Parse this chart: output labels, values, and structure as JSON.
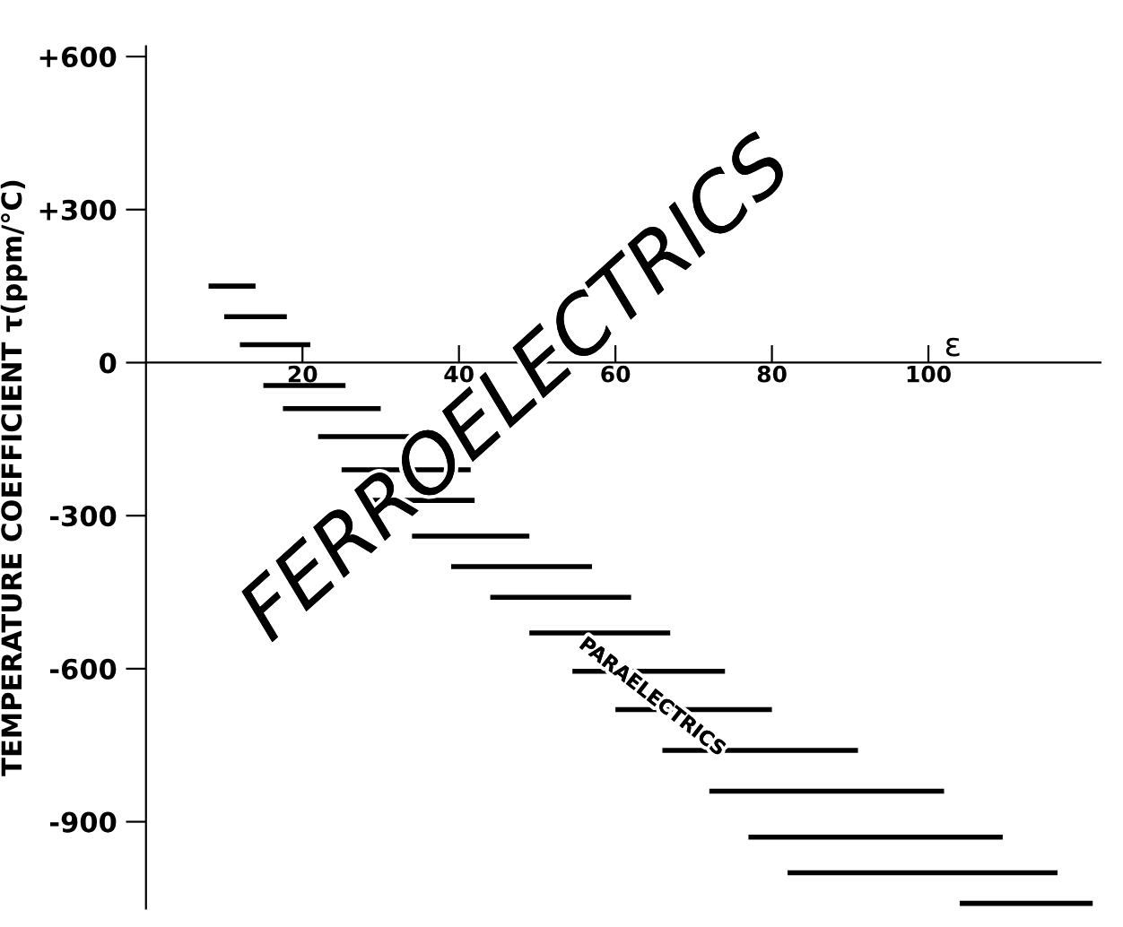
{
  "chart_data": {
    "type": "line",
    "ylabel": "TEMPERATURE COEFFICIENT τ(ppm/°C)",
    "xlabel": "ε",
    "xlim": [
      0,
      122
    ],
    "xticks": [
      20,
      40,
      60,
      80,
      100
    ],
    "ylim": [
      -1070,
      620
    ],
    "yticks": [
      {
        "value": 600,
        "label": "+600"
      },
      {
        "value": 300,
        "label": "+300"
      },
      0,
      {
        "value": -300,
        "label": "-300"
      },
      {
        "value": -600,
        "label": "-600"
      },
      {
        "value": -900,
        "label": "-900"
      }
    ],
    "grid": false,
    "legend": false,
    "marker": "none",
    "line_style": "solid",
    "annotations": [
      "FERROELECTRICS",
      "PARAELECTRICS"
    ],
    "series": [
      {
        "color": "#000000",
        "x": [
          8,
          14
        ],
        "values": [
          150,
          150
        ]
      },
      {
        "color": "#000000",
        "x": [
          10,
          18
        ],
        "values": [
          90,
          90
        ]
      },
      {
        "color": "#000000",
        "x": [
          12,
          21
        ],
        "values": [
          35,
          35
        ]
      },
      {
        "color": "#000000",
        "x": [
          15,
          25.5
        ],
        "values": [
          -45,
          -45
        ]
      },
      {
        "color": "#000000",
        "x": [
          17.5,
          30
        ],
        "values": [
          -90,
          -90
        ]
      },
      {
        "color": "#000000",
        "x": [
          22,
          37
        ],
        "values": [
          -145,
          -145
        ]
      },
      {
        "color": "#000000",
        "x": [
          25,
          41.5
        ],
        "values": [
          -210,
          -210
        ]
      },
      {
        "color": "#000000",
        "x": [
          28,
          42
        ],
        "values": [
          -270,
          -270
        ]
      },
      {
        "color": "#000000",
        "x": [
          34,
          49
        ],
        "values": [
          -340,
          -340
        ]
      },
      {
        "color": "#000000",
        "x": [
          39,
          57
        ],
        "values": [
          -400,
          -400
        ]
      },
      {
        "color": "#000000",
        "x": [
          44,
          62
        ],
        "values": [
          -460,
          -460
        ]
      },
      {
        "color": "#000000",
        "x": [
          49,
          67
        ],
        "values": [
          -530,
          -530
        ]
      },
      {
        "color": "#000000",
        "x": [
          54.5,
          74
        ],
        "values": [
          -605,
          -605
        ]
      },
      {
        "color": "#000000",
        "x": [
          60,
          80
        ],
        "values": [
          -680,
          -680
        ]
      },
      {
        "color": "#000000",
        "x": [
          66,
          91
        ],
        "values": [
          -760,
          -760
        ]
      },
      {
        "color": "#000000",
        "x": [
          72,
          102
        ],
        "values": [
          -840,
          -840
        ]
      },
      {
        "color": "#000000",
        "x": [
          77,
          109.5
        ],
        "values": [
          -930,
          -930
        ]
      },
      {
        "color": "#000000",
        "x": [
          82,
          116.5
        ],
        "values": [
          -1000,
          -1000
        ]
      },
      {
        "color": "#000000",
        "x": [
          104,
          121
        ],
        "values": [
          -1060,
          -1060
        ]
      }
    ]
  }
}
